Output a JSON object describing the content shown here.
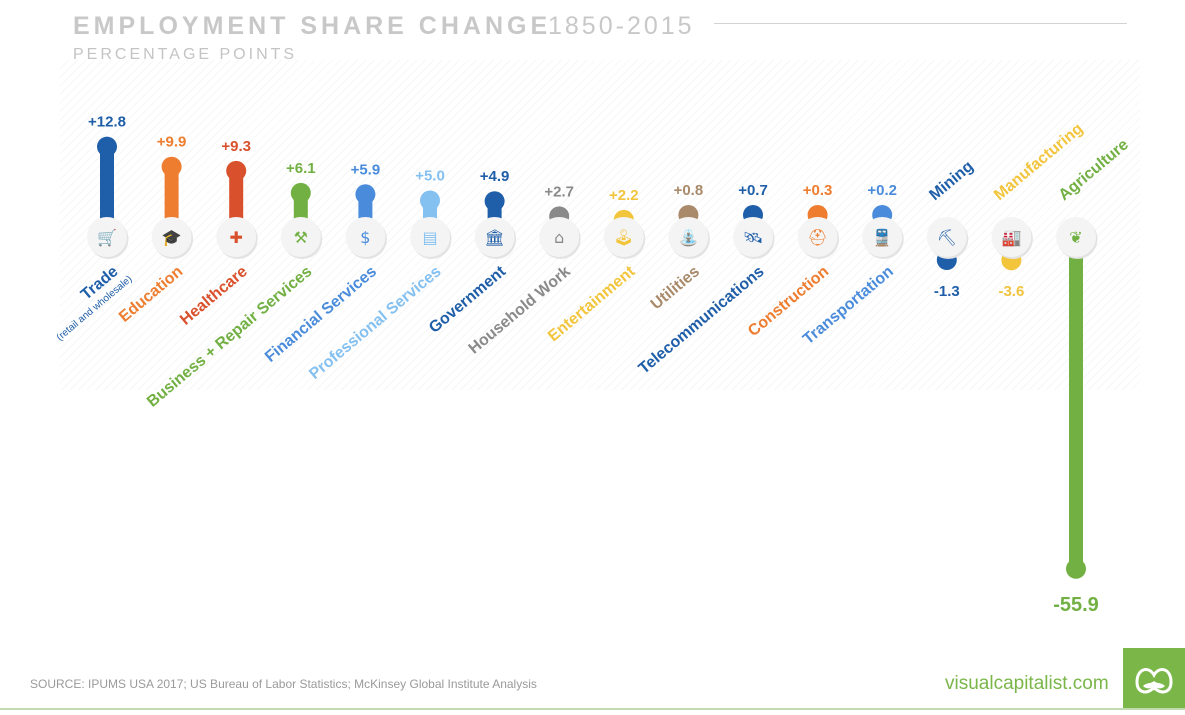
{
  "header": {
    "title": "EMPLOYMENT SHARE CHANGE",
    "years": "1850-2015",
    "subtitle": "PERCENTAGE POINTS"
  },
  "footer": {
    "source": "SOURCE: IPUMS USA 2017; US Bureau of Labor Statistics; McKinsey Global Institute Analysis",
    "brand": "visualcapitalist.com",
    "logo_icon": "visual-capitalist-logo-icon",
    "brand_color": "#7ab648"
  },
  "chart_data": {
    "type": "bar",
    "title": "EMPLOYMENT SHARE CHANGE 1850-2015",
    "subtitle": "PERCENTAGE POINTS",
    "xlabel": "",
    "ylabel": "Percentage points",
    "ylim": [
      -55.9,
      12.8
    ],
    "grid": false,
    "legend": "none",
    "categories": [
      "Trade",
      "Education",
      "Healthcare",
      "Business + Repair Services",
      "Financial Services",
      "Professional Services",
      "Government",
      "Household Work",
      "Entertainment",
      "Utilities",
      "Telecommunications",
      "Construction",
      "Transportation",
      "Mining",
      "Manufacturing",
      "Agriculture"
    ],
    "values": [
      12.8,
      9.9,
      9.3,
      6.1,
      5.9,
      5.0,
      4.9,
      2.7,
      2.2,
      0.8,
      0.7,
      0.3,
      0.2,
      -1.3,
      -3.6,
      -55.9
    ],
    "value_labels": [
      "+12.8",
      "+9.9",
      "+9.3",
      "+6.1",
      "+5.9",
      "+5.0",
      "+4.9",
      "+2.7",
      "+2.2",
      "+0.8",
      "+0.7",
      "+0.3",
      "+0.2",
      "-1.3",
      "-3.6",
      "-55.9"
    ],
    "sublabels": [
      "(retail and wholesale)",
      "",
      "",
      "",
      "",
      "",
      "",
      "",
      "",
      "",
      "",
      "",
      "",
      "",
      "",
      ""
    ],
    "colors": [
      "#1f5ea8",
      "#ee7d2f",
      "#d9512c",
      "#72b043",
      "#4a8cdb",
      "#84c1f1",
      "#1f5ea8",
      "#8a8a8a",
      "#f2c53d",
      "#a98a6a",
      "#1f5ea8",
      "#ee7d2f",
      "#4a8cdb",
      "#1f5ea8",
      "#f2c53d",
      "#72b043"
    ],
    "icons": [
      "shopping-cart-icon",
      "graduation-cap-icon",
      "medical-cross-icon",
      "wrench-screwdriver-icon",
      "money-bag-icon",
      "box-package-icon",
      "government-building-icon",
      "house-icon",
      "joystick-icon",
      "water-tap-icon",
      "satellite-icon",
      "construction-worker-icon",
      "train-icon",
      "pickaxe-icon",
      "factory-icon",
      "wheat-leaf-icon"
    ],
    "icon_glyphs": [
      "🛒",
      "🎓",
      "✚",
      "⚒",
      "$",
      "▤",
      "🏛",
      "⌂",
      "🕹",
      "⛲",
      "🛰",
      "⛑",
      "🚆",
      "⛏",
      "🏭",
      "❦"
    ]
  }
}
